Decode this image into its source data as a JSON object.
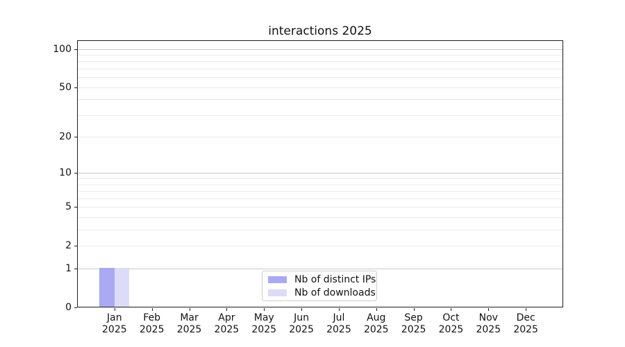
{
  "chart_data": {
    "type": "bar",
    "title": "interactions 2025",
    "categories": [
      "Jan",
      "Feb",
      "Mar",
      "Apr",
      "May",
      "Jun",
      "Jul",
      "Aug",
      "Sep",
      "Oct",
      "Nov",
      "Dec"
    ],
    "category_year": "2025",
    "series": [
      {
        "name": "Nb of distinct IPs",
        "color": "#a9a9f4",
        "values": [
          1,
          0,
          0,
          0,
          0,
          0,
          0,
          0,
          0,
          0,
          0,
          0
        ]
      },
      {
        "name": "Nb of downloads",
        "color": "#dcdcf8",
        "values": [
          1,
          0,
          0,
          0,
          0,
          0,
          0,
          0,
          0,
          0,
          0,
          0
        ]
      }
    ],
    "xlabel": "",
    "ylabel": "",
    "y_axis": {
      "scale": "log1p",
      "tick_values": [
        100,
        50,
        20,
        10,
        5,
        2,
        1,
        0
      ],
      "major_grid_values": [
        1,
        10,
        100
      ],
      "minor_grid_values": [
        2,
        3,
        4,
        5,
        6,
        7,
        8,
        9,
        20,
        30,
        40,
        50,
        60,
        70,
        80,
        90
      ],
      "ylim": [
        0,
        117
      ]
    },
    "legend": {
      "position": "lower center",
      "entries": [
        "Nb of distinct IPs",
        "Nb of downloads"
      ]
    },
    "colors": {
      "major_grid": "#c8c8c8",
      "minor_grid": "#ebebeb",
      "axis": "#1c1c1c",
      "text": "#111111",
      "background": "#ffffff"
    },
    "grid": {
      "enabled": true,
      "which": "both"
    }
  }
}
